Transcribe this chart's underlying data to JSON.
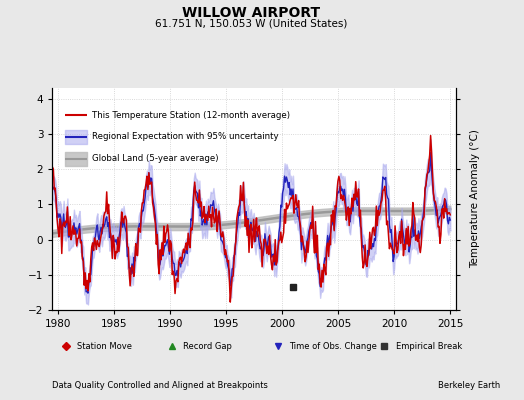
{
  "title": "WILLOW AIRPORT",
  "subtitle": "61.751 N, 150.053 W (United States)",
  "ylabel": "Temperature Anomaly (°C)",
  "xlabel_left": "Data Quality Controlled and Aligned at Breakpoints",
  "xlabel_right": "Berkeley Earth",
  "xlim": [
    1979.5,
    2015.5
  ],
  "ylim": [
    -2.0,
    4.3
  ],
  "yticks": [
    -2,
    -1,
    0,
    1,
    2,
    3,
    4
  ],
  "xticks": [
    1980,
    1985,
    1990,
    1995,
    2000,
    2005,
    2010,
    2015
  ],
  "bg_color": "#e8e8e8",
  "plot_bg_color": "#ffffff",
  "grid_color": "#cccccc",
  "regional_line_color": "#2222bb",
  "regional_fill_color": "#aaaaee",
  "station_line_color": "#cc0000",
  "global_line_color": "#999999",
  "global_fill_color": "#bbbbbb",
  "legend_labels": [
    "This Temperature Station (12-month average)",
    "Regional Expectation with 95% uncertainty",
    "Global Land (5-year average)"
  ],
  "marker_legend": [
    {
      "label": "Station Move",
      "color": "#cc0000",
      "marker": "D"
    },
    {
      "label": "Record Gap",
      "color": "#228822",
      "marker": "^"
    },
    {
      "label": "Time of Obs. Change",
      "color": "#2222bb",
      "marker": "v"
    },
    {
      "label": "Empirical Break",
      "color": "#333333",
      "marker": "s"
    }
  ],
  "empirical_break_x": 2001.0,
  "empirical_break_y": -1.35
}
